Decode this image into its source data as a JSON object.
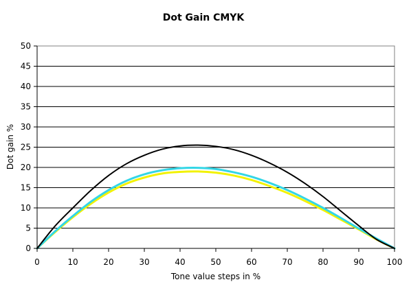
{
  "chart_data": {
    "type": "line",
    "title": "Dot Gain CMYK",
    "xlabel": "Tone value steps in %",
    "ylabel": "Dot gain %",
    "xlim": [
      0,
      100
    ],
    "ylim": [
      0,
      50
    ],
    "x_ticks": [
      "0",
      "10",
      "20",
      "30",
      "40",
      "50",
      "60",
      "70",
      "80",
      "90",
      "100"
    ],
    "y_ticks": [
      "0",
      "5",
      "10",
      "15",
      "20",
      "25",
      "30",
      "35",
      "40",
      "45",
      "50"
    ],
    "grid": "horizontal",
    "x": [
      0,
      5,
      10,
      15,
      20,
      25,
      30,
      35,
      40,
      45,
      50,
      55,
      60,
      65,
      70,
      75,
      80,
      85,
      90,
      95,
      100
    ],
    "series": [
      {
        "key": "black",
        "color": "#000000",
        "values": [
          0,
          5.5,
          10.0,
          14.3,
          18.0,
          20.9,
          23.0,
          24.5,
          25.3,
          25.5,
          25.2,
          24.4,
          23.0,
          21.1,
          18.8,
          16.0,
          12.8,
          9.2,
          5.6,
          2.2,
          0
        ]
      },
      {
        "key": "cyan",
        "color": "#33d6e6",
        "values": [
          0,
          4.2,
          8.0,
          11.5,
          14.4,
          16.7,
          18.3,
          19.3,
          19.8,
          19.9,
          19.6,
          18.8,
          17.7,
          16.2,
          14.4,
          12.3,
          10.0,
          7.5,
          4.9,
          2.4,
          0
        ]
      },
      {
        "key": "yellow",
        "color": "#f2f200",
        "values": [
          0,
          4.0,
          7.7,
          11.0,
          13.8,
          16.0,
          17.5,
          18.5,
          18.9,
          19.0,
          18.7,
          18.0,
          16.9,
          15.4,
          13.7,
          11.7,
          9.5,
          7.1,
          4.7,
          2.2,
          0
        ]
      }
    ]
  }
}
